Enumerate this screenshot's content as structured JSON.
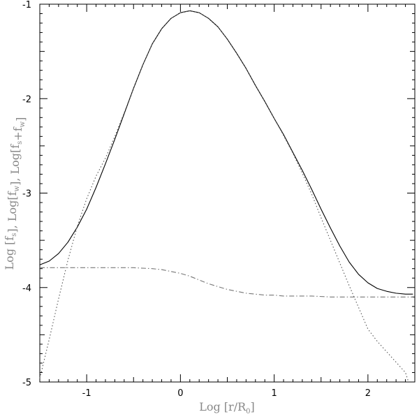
{
  "chart_data": {
    "type": "line",
    "xlabel": {
      "prefix": "Log [r/R",
      "sub": "0",
      "suffix": "]"
    },
    "ylabel": {
      "parts": [
        {
          "t": "Log [f",
          "sub": false
        },
        {
          "t": "s",
          "sub": true
        },
        {
          "t": "], Log[f",
          "sub": false
        },
        {
          "t": "w",
          "sub": true
        },
        {
          "t": "], Log[f",
          "sub": false
        },
        {
          "t": "s",
          "sub": true
        },
        {
          "t": "+f",
          "sub": false
        },
        {
          "t": "w",
          "sub": true
        },
        {
          "t": "]",
          "sub": false
        }
      ]
    },
    "xlim": [
      -1.5,
      2.5
    ],
    "ylim": [
      -5,
      -1
    ],
    "x_ticks": [
      -1,
      0,
      1,
      2
    ],
    "y_ticks": [
      -5,
      -4,
      -3,
      -2,
      -1
    ],
    "x_tick_labels": [
      "-1",
      "0",
      "1",
      "2"
    ],
    "y_tick_labels": [
      "-5",
      "-4",
      "-3",
      "-2",
      "-1"
    ],
    "grid": false,
    "series": [
      {
        "style": "solid",
        "color": "#000000",
        "x": [
          -1.5,
          -1.4,
          -1.3,
          -1.2,
          -1.1,
          -1.0,
          -0.9,
          -0.8,
          -0.7,
          -0.6,
          -0.5,
          -0.4,
          -0.3,
          -0.2,
          -0.1,
          0.0,
          0.1,
          0.2,
          0.3,
          0.4,
          0.5,
          0.6,
          0.7,
          0.8,
          0.9,
          1.0,
          1.1,
          1.2,
          1.3,
          1.4,
          1.5,
          1.6,
          1.7,
          1.8,
          1.9,
          2.0,
          2.1,
          2.2,
          2.3,
          2.4,
          2.48
        ],
        "y": [
          -3.76,
          -3.72,
          -3.64,
          -3.52,
          -3.36,
          -3.17,
          -2.94,
          -2.69,
          -2.43,
          -2.16,
          -1.89,
          -1.64,
          -1.42,
          -1.26,
          -1.15,
          -1.09,
          -1.07,
          -1.09,
          -1.15,
          -1.24,
          -1.37,
          -1.52,
          -1.68,
          -1.86,
          -2.03,
          -2.21,
          -2.38,
          -2.57,
          -2.76,
          -2.96,
          -3.17,
          -3.37,
          -3.56,
          -3.73,
          -3.86,
          -3.95,
          -4.01,
          -4.04,
          -4.06,
          -4.07,
          -4.07
        ]
      },
      {
        "style": "dotted",
        "color": "#555555",
        "x": [
          -1.5,
          -1.4,
          -1.3,
          -1.2,
          -1.1,
          -1.0,
          -0.9,
          -0.8,
          -0.7,
          -0.6,
          -0.5,
          -0.4,
          -0.3,
          -0.2,
          -0.1,
          0.0,
          0.1,
          0.2,
          0.3,
          0.4,
          0.5,
          0.6,
          0.7,
          0.8,
          0.9,
          1.0,
          1.1,
          1.2,
          1.3,
          1.4,
          1.5,
          1.6,
          1.7,
          1.8,
          1.9,
          2.0,
          2.1,
          2.2,
          2.3,
          2.4,
          2.43
        ],
        "y": [
          -4.96,
          -4.55,
          -4.12,
          -3.71,
          -3.35,
          -3.06,
          -2.82,
          -2.63,
          -2.4,
          -2.15,
          -1.89,
          -1.64,
          -1.42,
          -1.26,
          -1.15,
          -1.09,
          -1.07,
          -1.09,
          -1.15,
          -1.24,
          -1.37,
          -1.52,
          -1.68,
          -1.86,
          -2.03,
          -2.21,
          -2.39,
          -2.58,
          -2.79,
          -3.01,
          -3.26,
          -3.5,
          -3.74,
          -3.98,
          -4.21,
          -4.44,
          -4.57,
          -4.68,
          -4.79,
          -4.9,
          -4.99
        ]
      },
      {
        "style": "dashdot",
        "color": "#777777",
        "x": [
          -1.5,
          -1.3,
          -1.1,
          -0.9,
          -0.7,
          -0.5,
          -0.3,
          -0.2,
          -0.1,
          0.0,
          0.1,
          0.2,
          0.3,
          0.4,
          0.5,
          0.6,
          0.7,
          0.8,
          0.9,
          1.0,
          1.1,
          1.2,
          1.4,
          1.6,
          1.8,
          2.0,
          2.2,
          2.48
        ],
        "y": [
          -3.79,
          -3.79,
          -3.79,
          -3.79,
          -3.79,
          -3.79,
          -3.8,
          -3.81,
          -3.83,
          -3.85,
          -3.88,
          -3.92,
          -3.96,
          -3.99,
          -4.02,
          -4.04,
          -4.06,
          -4.07,
          -4.08,
          -4.08,
          -4.09,
          -4.09,
          -4.09,
          -4.1,
          -4.1,
          -4.1,
          -4.1,
          -4.1
        ]
      }
    ]
  }
}
